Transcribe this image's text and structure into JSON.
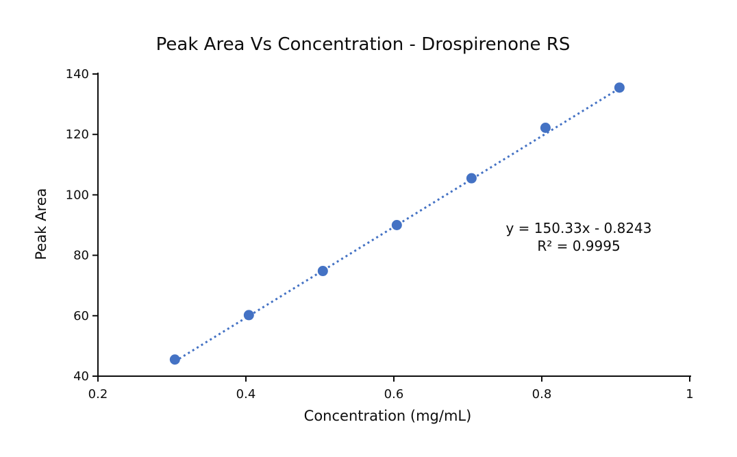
{
  "chart_data": {
    "type": "scatter",
    "title": "Peak Area Vs Concentration - Drospirenone RS",
    "xlabel": "Concentration (mg/mL)",
    "ylabel": "Peak Area",
    "xlim": [
      0.2,
      1.0
    ],
    "ylim": [
      40,
      140
    ],
    "xticks": [
      0.2,
      0.4,
      0.6,
      0.8,
      1.0
    ],
    "xtick_labels": [
      "0.2",
      "0.4",
      "0.6",
      "0.8",
      "1"
    ],
    "yticks": [
      40,
      60,
      80,
      100,
      120,
      140
    ],
    "ytick_labels": [
      "40",
      "60",
      "80",
      "100",
      "120",
      "140"
    ],
    "grid": false,
    "legend": "none",
    "marker_color": "#4472C4",
    "trendline_color": "#4472C4",
    "axis_color": "#0d0d0d",
    "series": [
      {
        "x": [
          0.304,
          0.404,
          0.504,
          0.604,
          0.705,
          0.805,
          0.905
        ],
        "y": [
          45.5,
          60.2,
          74.8,
          90.0,
          105.5,
          122.2,
          135.5
        ]
      }
    ],
    "trendline": {
      "style": "dotted",
      "slope": 150.33,
      "intercept": -0.8243,
      "x_start": 0.304,
      "x_end": 0.905
    },
    "annotation": {
      "line1": "y = 150.33x - 0.8243",
      "line2": "R² = 0.9995"
    }
  }
}
